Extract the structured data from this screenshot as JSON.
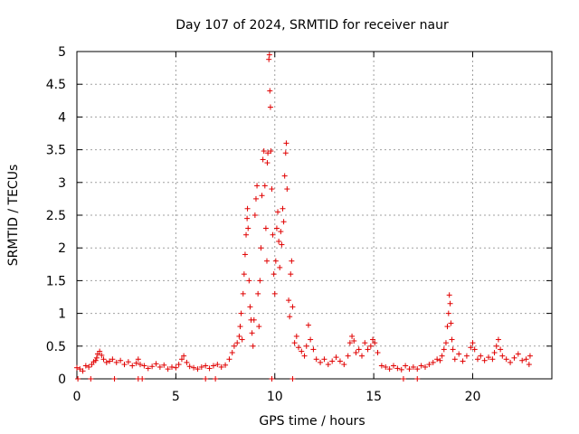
{
  "chart_data": {
    "type": "scatter",
    "title": "Day 107 of 2024, SRMTID for receiver naur",
    "xlabel": "GPS time / hours",
    "ylabel": "SRMTID / TECUs",
    "xlim": [
      0,
      24
    ],
    "ylim": [
      0,
      5
    ],
    "xticks": [
      0,
      5,
      10,
      15,
      20
    ],
    "xtick_labels": [
      "0",
      "5",
      "10",
      "15",
      "20"
    ],
    "yticks": [
      0,
      0.5,
      1,
      1.5,
      2,
      2.5,
      3,
      3.5,
      4,
      4.5,
      5
    ],
    "ytick_labels": [
      "0",
      "0.5",
      "1",
      "1.5",
      "2",
      "2.5",
      "3",
      "3.5",
      "4",
      "4.5",
      "5"
    ],
    "grid": true,
    "series": [
      {
        "name": "SRMTID",
        "marker": "+",
        "color": "#e00000",
        "points": [
          [
            0.0,
            0.17
          ],
          [
            0.15,
            0.15
          ],
          [
            0.3,
            0.12
          ],
          [
            0.45,
            0.2
          ],
          [
            0.6,
            0.18
          ],
          [
            0.75,
            0.22
          ],
          [
            0.85,
            0.26
          ],
          [
            0.95,
            0.28
          ],
          [
            1.0,
            0.32
          ],
          [
            1.05,
            0.38
          ],
          [
            1.15,
            0.42
          ],
          [
            1.25,
            0.36
          ],
          [
            1.35,
            0.3
          ],
          [
            1.5,
            0.25
          ],
          [
            1.65,
            0.27
          ],
          [
            1.8,
            0.3
          ],
          [
            2.0,
            0.25
          ],
          [
            2.2,
            0.28
          ],
          [
            2.4,
            0.22
          ],
          [
            2.6,
            0.26
          ],
          [
            2.8,
            0.2
          ],
          [
            3.0,
            0.24
          ],
          [
            3.1,
            0.3
          ],
          [
            3.2,
            0.22
          ],
          [
            3.4,
            0.2
          ],
          [
            3.6,
            0.16
          ],
          [
            3.8,
            0.19
          ],
          [
            4.0,
            0.23
          ],
          [
            4.2,
            0.18
          ],
          [
            4.4,
            0.21
          ],
          [
            4.6,
            0.15
          ],
          [
            4.8,
            0.18
          ],
          [
            5.0,
            0.17
          ],
          [
            5.15,
            0.22
          ],
          [
            5.3,
            0.3
          ],
          [
            5.4,
            0.35
          ],
          [
            5.55,
            0.25
          ],
          [
            5.7,
            0.19
          ],
          [
            5.9,
            0.17
          ],
          [
            6.1,
            0.15
          ],
          [
            6.3,
            0.18
          ],
          [
            6.5,
            0.2
          ],
          [
            6.7,
            0.16
          ],
          [
            6.9,
            0.2
          ],
          [
            7.1,
            0.22
          ],
          [
            7.3,
            0.18
          ],
          [
            7.5,
            0.21
          ],
          [
            7.7,
            0.3
          ],
          [
            7.85,
            0.4
          ],
          [
            7.95,
            0.5
          ],
          [
            8.1,
            0.55
          ],
          [
            8.2,
            0.65
          ],
          [
            8.25,
            0.8
          ],
          [
            8.3,
            1.0
          ],
          [
            8.35,
            0.6
          ],
          [
            8.4,
            1.3
          ],
          [
            8.45,
            1.6
          ],
          [
            8.5,
            1.9
          ],
          [
            8.55,
            2.2
          ],
          [
            8.6,
            2.45
          ],
          [
            8.62,
            2.6
          ],
          [
            8.65,
            2.3
          ],
          [
            8.7,
            1.5
          ],
          [
            8.75,
            1.1
          ],
          [
            8.8,
            0.9
          ],
          [
            8.85,
            0.7
          ],
          [
            8.9,
            0.5
          ],
          [
            8.95,
            0.9
          ],
          [
            9.0,
            2.5
          ],
          [
            9.05,
            2.75
          ],
          [
            9.1,
            2.95
          ],
          [
            9.15,
            1.3
          ],
          [
            9.2,
            0.8
          ],
          [
            9.25,
            1.5
          ],
          [
            9.3,
            2.0
          ],
          [
            9.35,
            2.8
          ],
          [
            9.4,
            3.35
          ],
          [
            9.45,
            3.48
          ],
          [
            9.5,
            2.95
          ],
          [
            9.55,
            2.3
          ],
          [
            9.6,
            1.8
          ],
          [
            9.62,
            3.3
          ],
          [
            9.65,
            3.45
          ],
          [
            9.7,
            4.88
          ],
          [
            9.73,
            4.95
          ],
          [
            9.75,
            4.4
          ],
          [
            9.78,
            4.15
          ],
          [
            9.8,
            3.48
          ],
          [
            9.85,
            2.9
          ],
          [
            9.9,
            2.2
          ],
          [
            9.95,
            1.6
          ],
          [
            10.0,
            1.3
          ],
          [
            10.05,
            1.8
          ],
          [
            10.1,
            2.3
          ],
          [
            10.15,
            2.55
          ],
          [
            10.2,
            2.1
          ],
          [
            10.25,
            1.7
          ],
          [
            10.3,
            2.25
          ],
          [
            10.35,
            2.05
          ],
          [
            10.4,
            2.6
          ],
          [
            10.45,
            2.4
          ],
          [
            10.5,
            3.1
          ],
          [
            10.55,
            3.45
          ],
          [
            10.58,
            3.6
          ],
          [
            10.62,
            2.9
          ],
          [
            10.7,
            1.2
          ],
          [
            10.75,
            0.95
          ],
          [
            10.8,
            1.6
          ],
          [
            10.85,
            1.8
          ],
          [
            10.9,
            1.1
          ],
          [
            11.0,
            0.55
          ],
          [
            11.1,
            0.65
          ],
          [
            11.2,
            0.48
          ],
          [
            11.35,
            0.42
          ],
          [
            11.5,
            0.35
          ],
          [
            11.6,
            0.5
          ],
          [
            11.7,
            0.82
          ],
          [
            11.8,
            0.6
          ],
          [
            11.95,
            0.45
          ],
          [
            12.1,
            0.3
          ],
          [
            12.3,
            0.25
          ],
          [
            12.5,
            0.3
          ],
          [
            12.7,
            0.22
          ],
          [
            12.9,
            0.27
          ],
          [
            13.1,
            0.33
          ],
          [
            13.3,
            0.27
          ],
          [
            13.5,
            0.22
          ],
          [
            13.7,
            0.35
          ],
          [
            13.8,
            0.55
          ],
          [
            13.9,
            0.65
          ],
          [
            14.0,
            0.58
          ],
          [
            14.1,
            0.4
          ],
          [
            14.25,
            0.45
          ],
          [
            14.4,
            0.35
          ],
          [
            14.55,
            0.55
          ],
          [
            14.7,
            0.45
          ],
          [
            14.85,
            0.5
          ],
          [
            14.95,
            0.6
          ],
          [
            15.05,
            0.55
          ],
          [
            15.2,
            0.4
          ],
          [
            15.4,
            0.2
          ],
          [
            15.6,
            0.18
          ],
          [
            15.8,
            0.15
          ],
          [
            16.0,
            0.2
          ],
          [
            16.2,
            0.16
          ],
          [
            16.4,
            0.14
          ],
          [
            16.6,
            0.2
          ],
          [
            16.8,
            0.15
          ],
          [
            17.0,
            0.18
          ],
          [
            17.2,
            0.15
          ],
          [
            17.4,
            0.2
          ],
          [
            17.6,
            0.18
          ],
          [
            17.8,
            0.22
          ],
          [
            18.0,
            0.25
          ],
          [
            18.2,
            0.3
          ],
          [
            18.35,
            0.28
          ],
          [
            18.45,
            0.35
          ],
          [
            18.55,
            0.45
          ],
          [
            18.65,
            0.55
          ],
          [
            18.72,
            0.8
          ],
          [
            18.78,
            1.0
          ],
          [
            18.82,
            1.28
          ],
          [
            18.86,
            1.15
          ],
          [
            18.9,
            0.85
          ],
          [
            18.95,
            0.6
          ],
          [
            19.0,
            0.45
          ],
          [
            19.1,
            0.3
          ],
          [
            19.3,
            0.38
          ],
          [
            19.5,
            0.27
          ],
          [
            19.7,
            0.35
          ],
          [
            19.9,
            0.48
          ],
          [
            20.0,
            0.55
          ],
          [
            20.1,
            0.45
          ],
          [
            20.25,
            0.3
          ],
          [
            20.4,
            0.35
          ],
          [
            20.6,
            0.28
          ],
          [
            20.8,
            0.33
          ],
          [
            21.0,
            0.3
          ],
          [
            21.1,
            0.4
          ],
          [
            21.2,
            0.5
          ],
          [
            21.3,
            0.6
          ],
          [
            21.4,
            0.45
          ],
          [
            21.5,
            0.35
          ],
          [
            21.7,
            0.3
          ],
          [
            21.9,
            0.25
          ],
          [
            22.1,
            0.32
          ],
          [
            22.3,
            0.38
          ],
          [
            22.5,
            0.28
          ],
          [
            22.7,
            0.3
          ],
          [
            22.85,
            0.22
          ],
          [
            22.9,
            0.35
          ],
          [
            0.05,
            0.0
          ],
          [
            0.7,
            0.0
          ],
          [
            1.9,
            0.0
          ],
          [
            3.1,
            0.0
          ],
          [
            3.3,
            0.0
          ],
          [
            6.5,
            0.0
          ],
          [
            7.0,
            0.0
          ],
          [
            9.85,
            0.0
          ],
          [
            10.9,
            0.0
          ],
          [
            16.5,
            0.0
          ],
          [
            17.2,
            0.0
          ]
        ]
      }
    ]
  }
}
